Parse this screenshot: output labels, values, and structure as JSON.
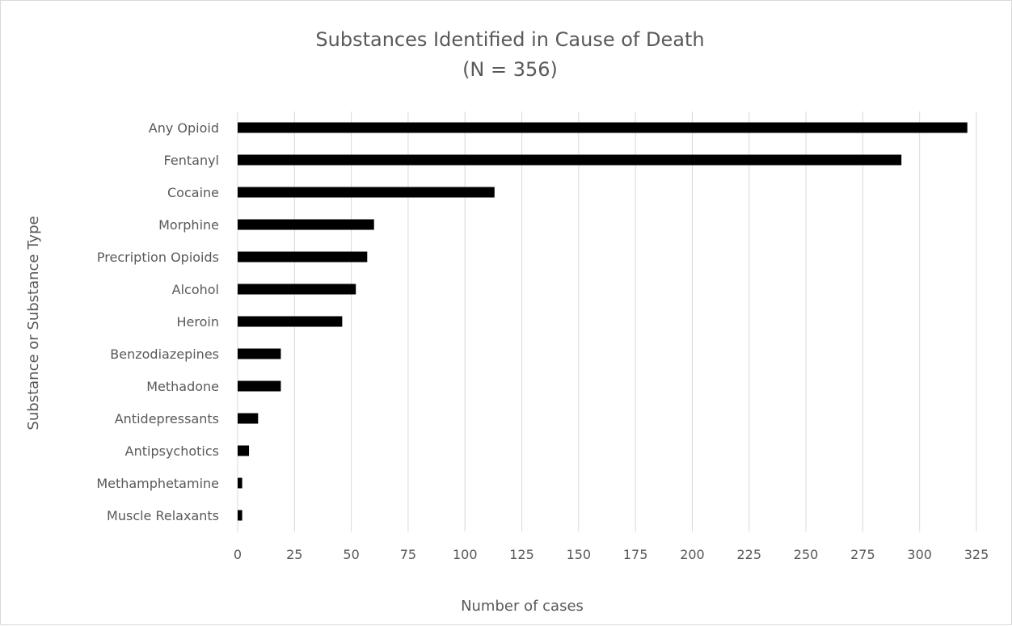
{
  "chart_data": {
    "type": "bar",
    "orientation": "horizontal",
    "title": "Substances Identified in Cause of Death",
    "subtitle": "(N = 356)",
    "xlabel": "Number of cases",
    "ylabel": "Substance or Substance Type",
    "xlim": [
      0,
      325
    ],
    "x_ticks": [
      0,
      25,
      50,
      75,
      100,
      125,
      150,
      175,
      200,
      225,
      250,
      275,
      300,
      325
    ],
    "grid": "vertical",
    "legend": "none",
    "bar_color": "#000000",
    "gridline_color": "#d9d9d9",
    "text_color": "#595959",
    "categories": [
      "Any Opioid",
      "Fentanyl",
      "Cocaine",
      "Morphine",
      "Precription Opioids",
      "Alcohol",
      "Heroin",
      "Benzodiazepines",
      "Methadone",
      "Antidepressants",
      "Antipsychotics",
      "Methamphetamine",
      "Muscle Relaxants"
    ],
    "values": [
      321,
      292,
      113,
      60,
      57,
      52,
      46,
      19,
      19,
      9,
      5,
      2,
      2
    ]
  }
}
